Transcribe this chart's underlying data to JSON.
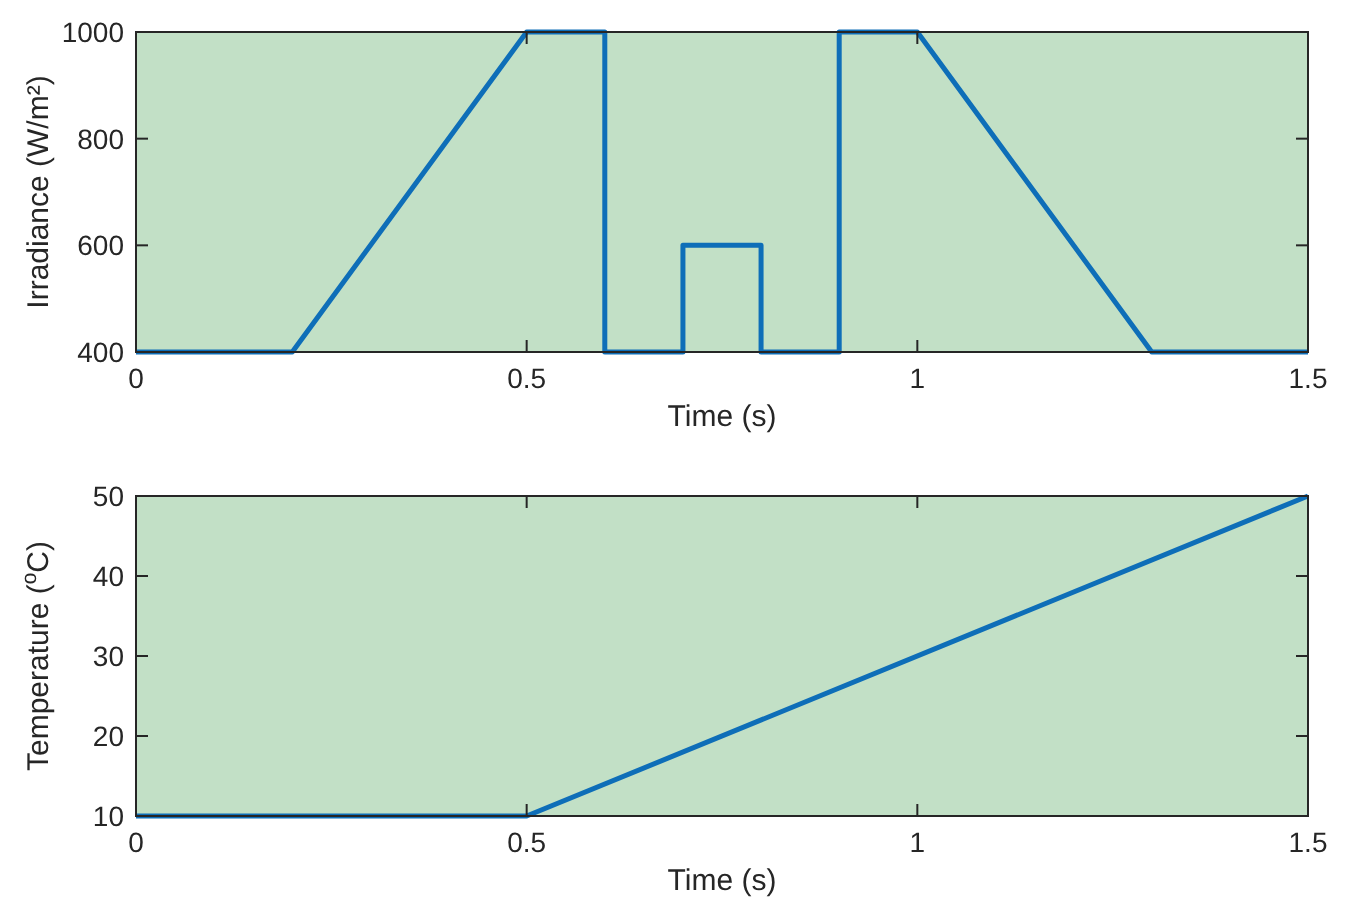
{
  "chart_data": [
    {
      "type": "line",
      "xlabel": "Time (s)",
      "ylabel": "Irradiance (W/m²)",
      "xlim": [
        0,
        1.5
      ],
      "ylim": [
        400,
        1000
      ],
      "xticks": [
        0,
        0.5,
        1,
        1.5
      ],
      "yticks": [
        400,
        600,
        800,
        1000
      ],
      "grid": false,
      "marker": "none",
      "line_style": "solid",
      "series": [
        {
          "color": "#0e6eb8",
          "x": [
            0,
            0.2,
            0.5,
            0.6,
            0.6,
            0.7,
            0.7,
            0.8,
            0.8,
            0.9,
            0.9,
            1.0,
            1.3,
            1.5
          ],
          "values": [
            400,
            400,
            1000,
            1000,
            400,
            400,
            600,
            600,
            400,
            400,
            1000,
            1000,
            400,
            400
          ]
        }
      ]
    },
    {
      "type": "line",
      "xlabel": "Time (s)",
      "ylabel": "Temperature ($^{o}$C)",
      "xlim": [
        0,
        1.5
      ],
      "ylim": [
        10,
        50
      ],
      "xticks": [
        0,
        0.5,
        1,
        1.5
      ],
      "yticks": [
        10,
        20,
        30,
        40,
        50
      ],
      "grid": false,
      "marker": "none",
      "line_style": "solid",
      "series": [
        {
          "color": "#0e6eb8",
          "x": [
            0,
            0.5,
            1.5
          ],
          "values": [
            10,
            10,
            50
          ]
        }
      ]
    }
  ]
}
